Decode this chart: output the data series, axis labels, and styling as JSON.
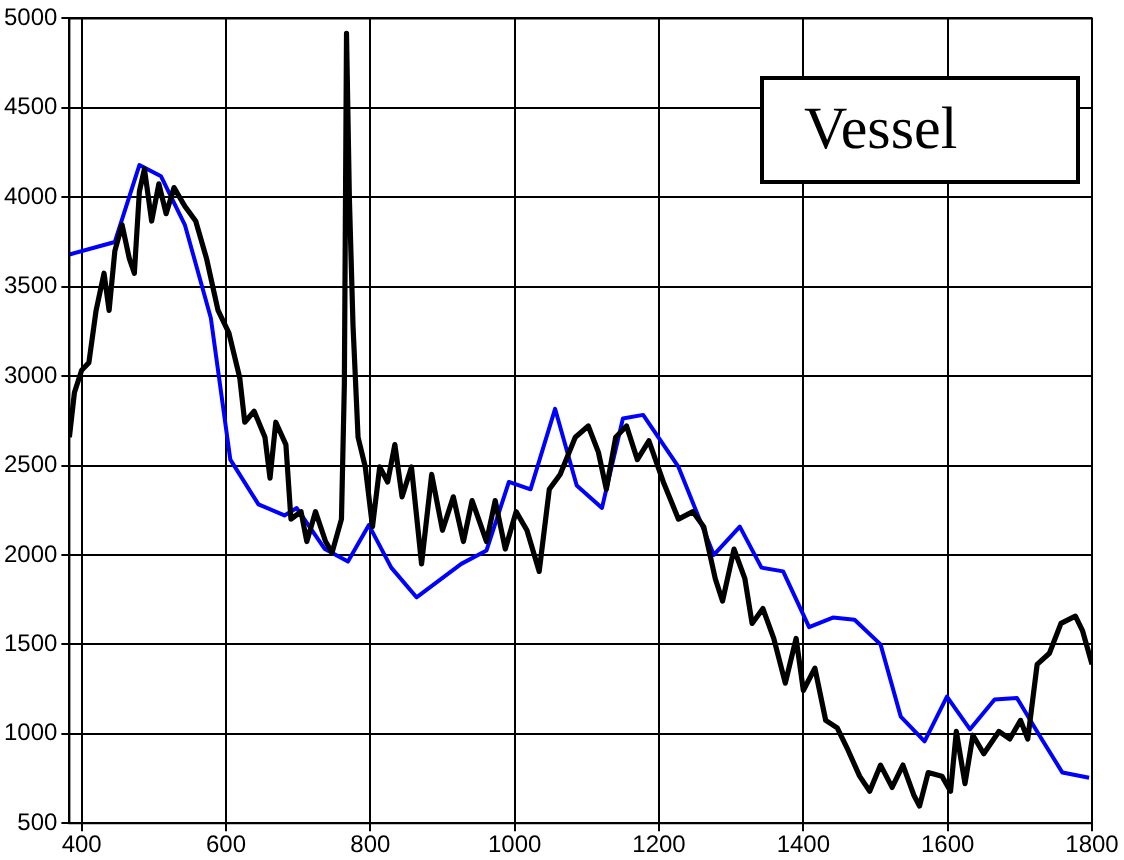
{
  "chart_data": {
    "type": "line",
    "xlim": [
      383,
      1800
    ],
    "xticks": [
      400,
      600,
      800,
      1000,
      1200,
      1400,
      1600,
      1800
    ],
    "ylim": [
      500,
      5000
    ],
    "yticks": [
      500,
      1000,
      1500,
      2000,
      2500,
      3000,
      3500,
      4000,
      4500,
      5000
    ],
    "grid": true,
    "line_style": "solid",
    "annotations": [
      "Vessel"
    ],
    "series": [
      {
        "color": "#000000",
        "x": [
          383,
          390,
          400,
          410,
          420,
          431,
          438,
          446,
          456,
          466,
          473,
          480,
          487,
          497,
          507,
          517,
          528,
          543,
          558,
          573,
          589,
          604,
          619,
          626,
          639,
          654,
          661,
          669,
          683,
          690,
          704,
          712,
          724,
          738,
          747,
          760,
          764,
          767,
          771,
          776,
          783,
          793,
          803,
          813,
          824,
          834,
          844,
          857,
          871,
          885,
          900,
          915,
          929,
          941,
          961,
          973,
          987,
          1002,
          1017,
          1034,
          1048,
          1063,
          1084,
          1102,
          1116,
          1127,
          1140,
          1155,
          1170,
          1186,
          1206,
          1227,
          1247,
          1262,
          1278,
          1288,
          1304,
          1319,
          1329,
          1344,
          1359,
          1375,
          1390,
          1400,
          1416,
          1431,
          1447,
          1462,
          1478,
          1492,
          1507,
          1523,
          1538,
          1553,
          1561,
          1573,
          1592,
          1604,
          1612,
          1624,
          1635,
          1650,
          1671,
          1686,
          1701,
          1711,
          1724,
          1741,
          1757,
          1777,
          1787,
          1800
        ],
        "values": [
          2658,
          2908,
          3033,
          3075,
          3367,
          3575,
          3367,
          3700,
          3846,
          3658,
          3575,
          4033,
          4158,
          3867,
          4075,
          3908,
          4054,
          3950,
          3867,
          3658,
          3367,
          3242,
          2992,
          2742,
          2804,
          2658,
          2429,
          2742,
          2617,
          2200,
          2242,
          2075,
          2242,
          2075,
          2013,
          2200,
          2950,
          4917,
          3992,
          3283,
          2658,
          2492,
          2158,
          2492,
          2408,
          2617,
          2325,
          2492,
          1950,
          2450,
          2138,
          2325,
          2075,
          2304,
          2075,
          2304,
          2033,
          2242,
          2138,
          1908,
          2367,
          2450,
          2658,
          2721,
          2575,
          2367,
          2658,
          2721,
          2533,
          2638,
          2408,
          2200,
          2242,
          2158,
          1867,
          1742,
          2033,
          1867,
          1617,
          1700,
          1533,
          1283,
          1533,
          1242,
          1367,
          1075,
          1033,
          908,
          763,
          679,
          825,
          700,
          825,
          658,
          596,
          783,
          763,
          679,
          1013,
          721,
          992,
          888,
          1013,
          971,
          1075,
          971,
          1388,
          1450,
          1617,
          1658,
          1575,
          1388
        ]
      },
      {
        "color": "#0000ff",
        "x": [
          383,
          446,
          480,
          510,
          543,
          579,
          606,
          645,
          681,
          698,
          737,
          769,
          798,
          829,
          864,
          926,
          961,
          992,
          1022,
          1056,
          1086,
          1121,
          1150,
          1178,
          1227,
          1276,
          1312,
          1342,
          1372,
          1408,
          1441,
          1471,
          1507,
          1535,
          1568,
          1599,
          1631,
          1665,
          1696,
          1727,
          1759,
          1796
        ],
        "values": [
          3680,
          3750,
          4180,
          4117,
          3846,
          3325,
          2533,
          2283,
          2221,
          2262,
          2033,
          1963,
          2167,
          1929,
          1763,
          1950,
          2025,
          2408,
          2367,
          2817,
          2388,
          2263,
          2763,
          2783,
          2492,
          2000,
          2158,
          1929,
          1908,
          1596,
          1650,
          1638,
          1500,
          1096,
          958,
          1208,
          1025,
          1192,
          1200,
          992,
          783,
          754
        ]
      }
    ]
  }
}
